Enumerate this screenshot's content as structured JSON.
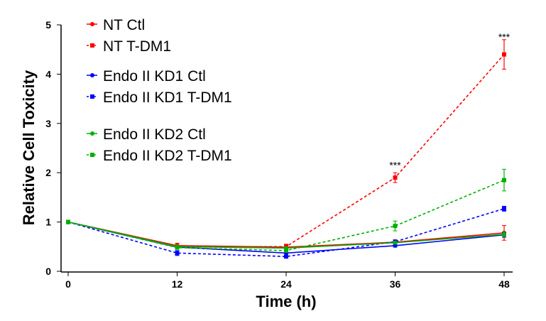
{
  "chart_data": {
    "type": "line",
    "title": "",
    "xlabel": "Time (h)",
    "ylabel": "Relative Cell Toxicity",
    "x": [
      0,
      12,
      24,
      36,
      48
    ],
    "xlim": [
      0,
      48
    ],
    "ylim": [
      0,
      5
    ],
    "xticks": [
      "0",
      "12",
      "24",
      "36",
      "48"
    ],
    "yticks": [
      "0",
      "1",
      "2",
      "3",
      "4",
      "5"
    ],
    "grid": false,
    "legend_position": "top-left",
    "series": [
      {
        "name": "NT Ctl",
        "color": "#ff0000",
        "style": "solid",
        "marker": "diamond",
        "values": [
          1.0,
          0.52,
          0.49,
          0.59,
          0.78
        ],
        "errors": [
          0,
          0.05,
          0.05,
          0.05,
          0.15
        ]
      },
      {
        "name": "NT T-DM1",
        "color": "#ff0000",
        "style": "dashed",
        "marker": "square",
        "values": [
          1.0,
          0.5,
          0.5,
          1.9,
          4.4
        ],
        "errors": [
          0,
          0.05,
          0.05,
          0.1,
          0.3
        ]
      },
      {
        "name": "Endo II KD1 Ctl",
        "color": "#0000ff",
        "style": "solid",
        "marker": "diamond",
        "values": [
          1.0,
          0.49,
          0.37,
          0.52,
          0.74
        ],
        "errors": [
          0,
          0.03,
          0.05,
          0.03,
          0.05
        ]
      },
      {
        "name": "Endo II KD1 T-DM1",
        "color": "#0000ff",
        "style": "dashed",
        "marker": "square",
        "values": [
          1.0,
          0.37,
          0.3,
          0.6,
          1.27
        ],
        "errors": [
          0,
          0.05,
          0.03,
          0.03,
          0.05
        ]
      },
      {
        "name": "Endo II KD2 Ctl",
        "color": "#00b000",
        "style": "solid",
        "marker": "diamond",
        "values": [
          1.0,
          0.5,
          0.47,
          0.58,
          0.75
        ],
        "errors": [
          0,
          0.03,
          0.03,
          0.03,
          0.05
        ]
      },
      {
        "name": "Endo II KD2 T-DM1",
        "color": "#00b000",
        "style": "dashed",
        "marker": "square",
        "values": [
          1.0,
          0.48,
          0.42,
          0.92,
          1.85
        ],
        "errors": [
          0,
          0.03,
          0.03,
          0.1,
          0.22
        ]
      }
    ],
    "annotations": [
      {
        "text": "***",
        "x": 36,
        "y": 2.2
      },
      {
        "text": "***",
        "x": 48,
        "y": 4.8
      }
    ]
  }
}
